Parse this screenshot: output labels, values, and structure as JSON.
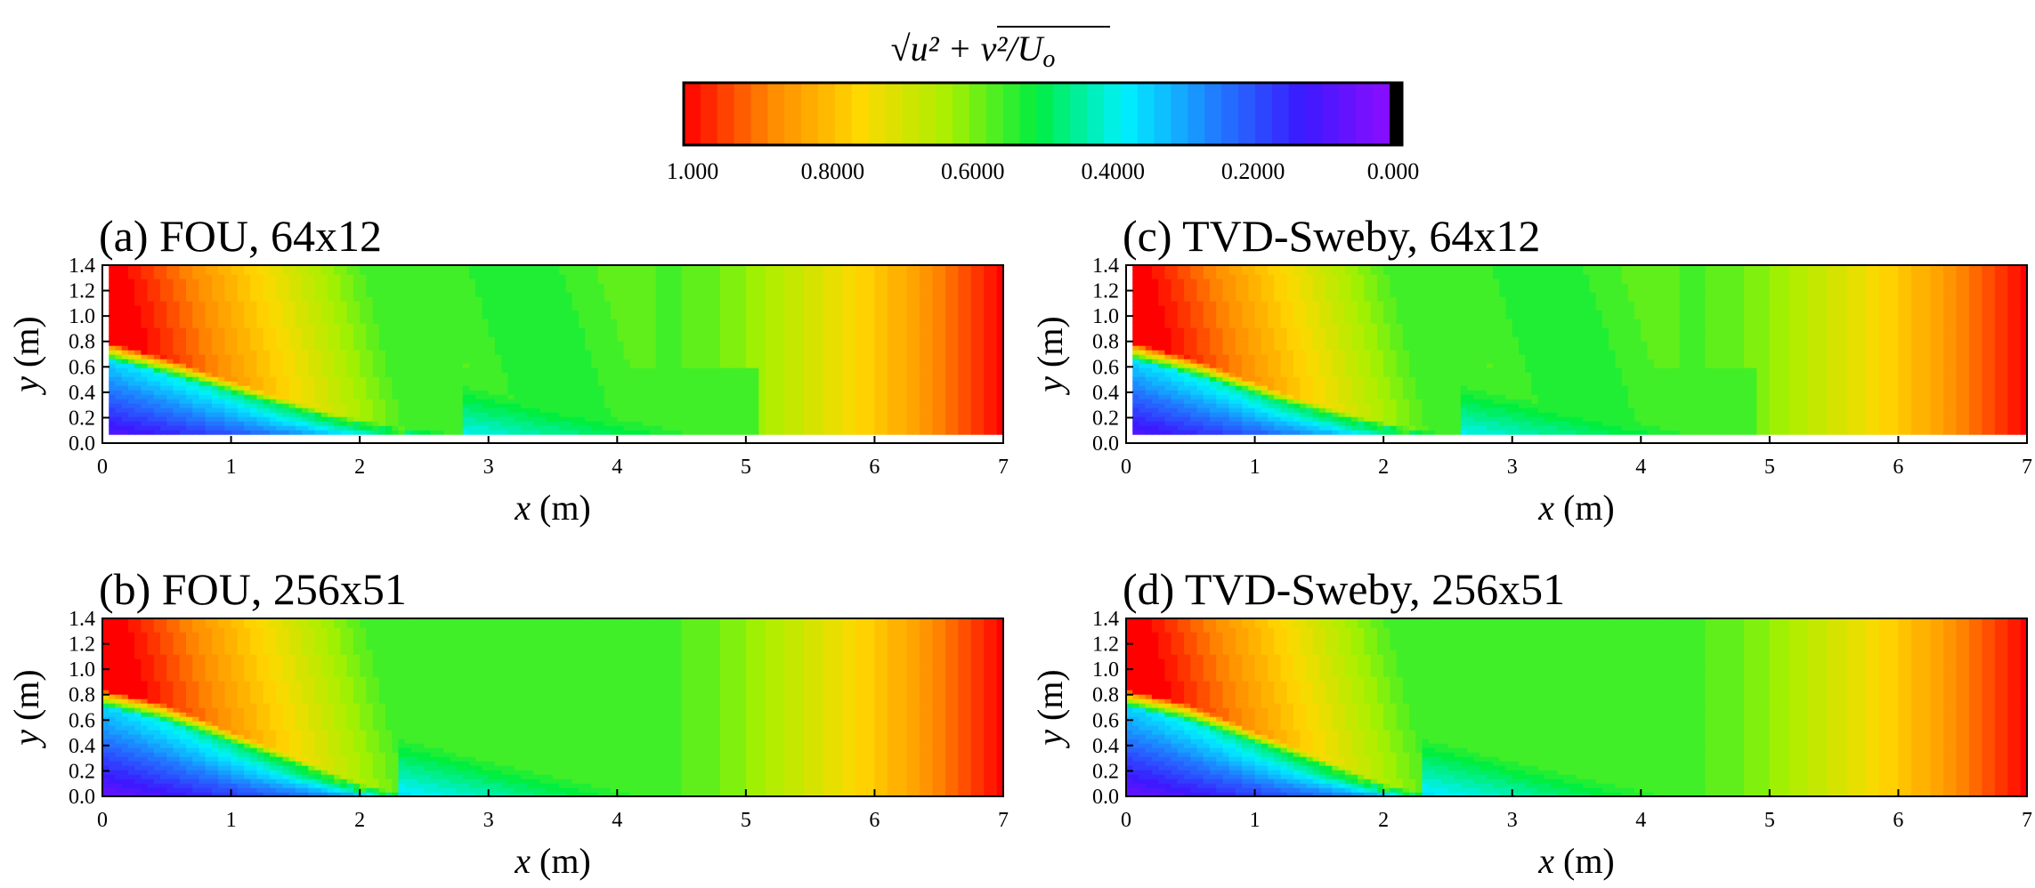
{
  "colorbar": {
    "title": {
      "sqrt": "√",
      "radicand": "u² + v²",
      "rest": "/U",
      "sub": "o"
    },
    "ticks": [
      "1.000",
      "0.8000",
      "0.6000",
      "0.4000",
      "0.2000",
      "0.000"
    ],
    "tick_values": [
      1.0,
      0.8,
      0.6,
      0.4,
      0.2,
      0.0
    ],
    "levels": 42,
    "colormap": [
      "#ff0000",
      "#ff8a00",
      "#ffd800",
      "#a8f000",
      "#00ee40",
      "#00f0ff",
      "#1f7fff",
      "#3a1aff",
      "#8c0dff",
      "#000000"
    ]
  },
  "chart_data": [
    {
      "type": "heatmap",
      "title": "(a) FOU, 64x12",
      "xlabel": {
        "var": "x",
        "unit": " (m)"
      },
      "ylabel": {
        "var": "y",
        "unit": " (m)"
      },
      "xlim": [
        0,
        7
      ],
      "ylim": [
        0,
        1.4
      ],
      "xticks": [
        "0",
        "1",
        "2",
        "3",
        "4",
        "5",
        "6",
        "7"
      ],
      "yticks": [
        "0.0",
        "0.2",
        "0.4",
        "0.6",
        "0.8",
        "1.0",
        "1.2",
        "1.4"
      ],
      "field": "sqrt(u^2+v^2)/Uo",
      "bed_profile": {
        "x": [
          0,
          1,
          2,
          2.8,
          7
        ],
        "y": [
          0.06,
          0.06,
          0.06,
          0.06,
          0.06
        ]
      },
      "jet_line": {
        "x": [
          0,
          0.6,
          1.2,
          1.8,
          2.4,
          2.8
        ],
        "y": [
          0.68,
          0.52,
          0.34,
          0.18,
          0.08,
          0.06
        ]
      }
    },
    {
      "type": "heatmap",
      "title": "(b) FOU, 256x51",
      "xlabel": {
        "var": "x",
        "unit": " (m)"
      },
      "ylabel": {
        "var": "y",
        "unit": " (m)"
      },
      "xlim": [
        0,
        7
      ],
      "ylim": [
        0,
        1.4
      ],
      "xticks": [
        "0",
        "1",
        "2",
        "3",
        "4",
        "5",
        "6",
        "7"
      ],
      "yticks": [
        "0.0",
        "0.2",
        "0.4",
        "0.6",
        "0.8",
        "1.0",
        "1.2",
        "1.4"
      ],
      "field": "sqrt(u^2+v^2)/Uo",
      "jet_line": {
        "x": [
          0,
          0.5,
          1.0,
          1.5,
          2.0,
          2.3
        ],
        "y": [
          0.72,
          0.6,
          0.42,
          0.24,
          0.06,
          0.0
        ]
      }
    },
    {
      "type": "heatmap",
      "title": "(c) TVD-Sweby, 64x12",
      "xlabel": {
        "var": "x",
        "unit": " (m)"
      },
      "ylabel": {
        "var": "y",
        "unit": " (m)"
      },
      "xlim": [
        0,
        7
      ],
      "ylim": [
        0,
        1.4
      ],
      "xticks": [
        "0",
        "1",
        "2",
        "3",
        "4",
        "5",
        "6",
        "7"
      ],
      "yticks": [
        "0.0",
        "0.2",
        "0.4",
        "0.6",
        "0.8",
        "1.0",
        "1.2",
        "1.4"
      ],
      "field": "sqrt(u^2+v^2)/Uo",
      "jet_line": {
        "x": [
          0,
          0.6,
          1.2,
          1.8,
          2.3,
          2.6
        ],
        "y": [
          0.68,
          0.52,
          0.32,
          0.16,
          0.07,
          0.06
        ]
      }
    },
    {
      "type": "heatmap",
      "title": "(d) TVD-Sweby, 256x51",
      "xlabel": {
        "var": "x",
        "unit": " (m)"
      },
      "ylabel": {
        "var": "y",
        "unit": " (m)"
      },
      "xlim": [
        0,
        7
      ],
      "ylim": [
        0,
        1.4
      ],
      "xticks": [
        "0",
        "1",
        "2",
        "3",
        "4",
        "5",
        "6",
        "7"
      ],
      "yticks": [
        "0.0",
        "0.2",
        "0.4",
        "0.6",
        "0.8",
        "1.0",
        "1.2",
        "1.4"
      ],
      "field": "sqrt(u^2+v^2)/Uo",
      "jet_line": {
        "x": [
          0,
          0.5,
          1.0,
          1.5,
          2.0,
          2.3
        ],
        "y": [
          0.72,
          0.6,
          0.42,
          0.24,
          0.06,
          0.0
        ]
      }
    }
  ]
}
